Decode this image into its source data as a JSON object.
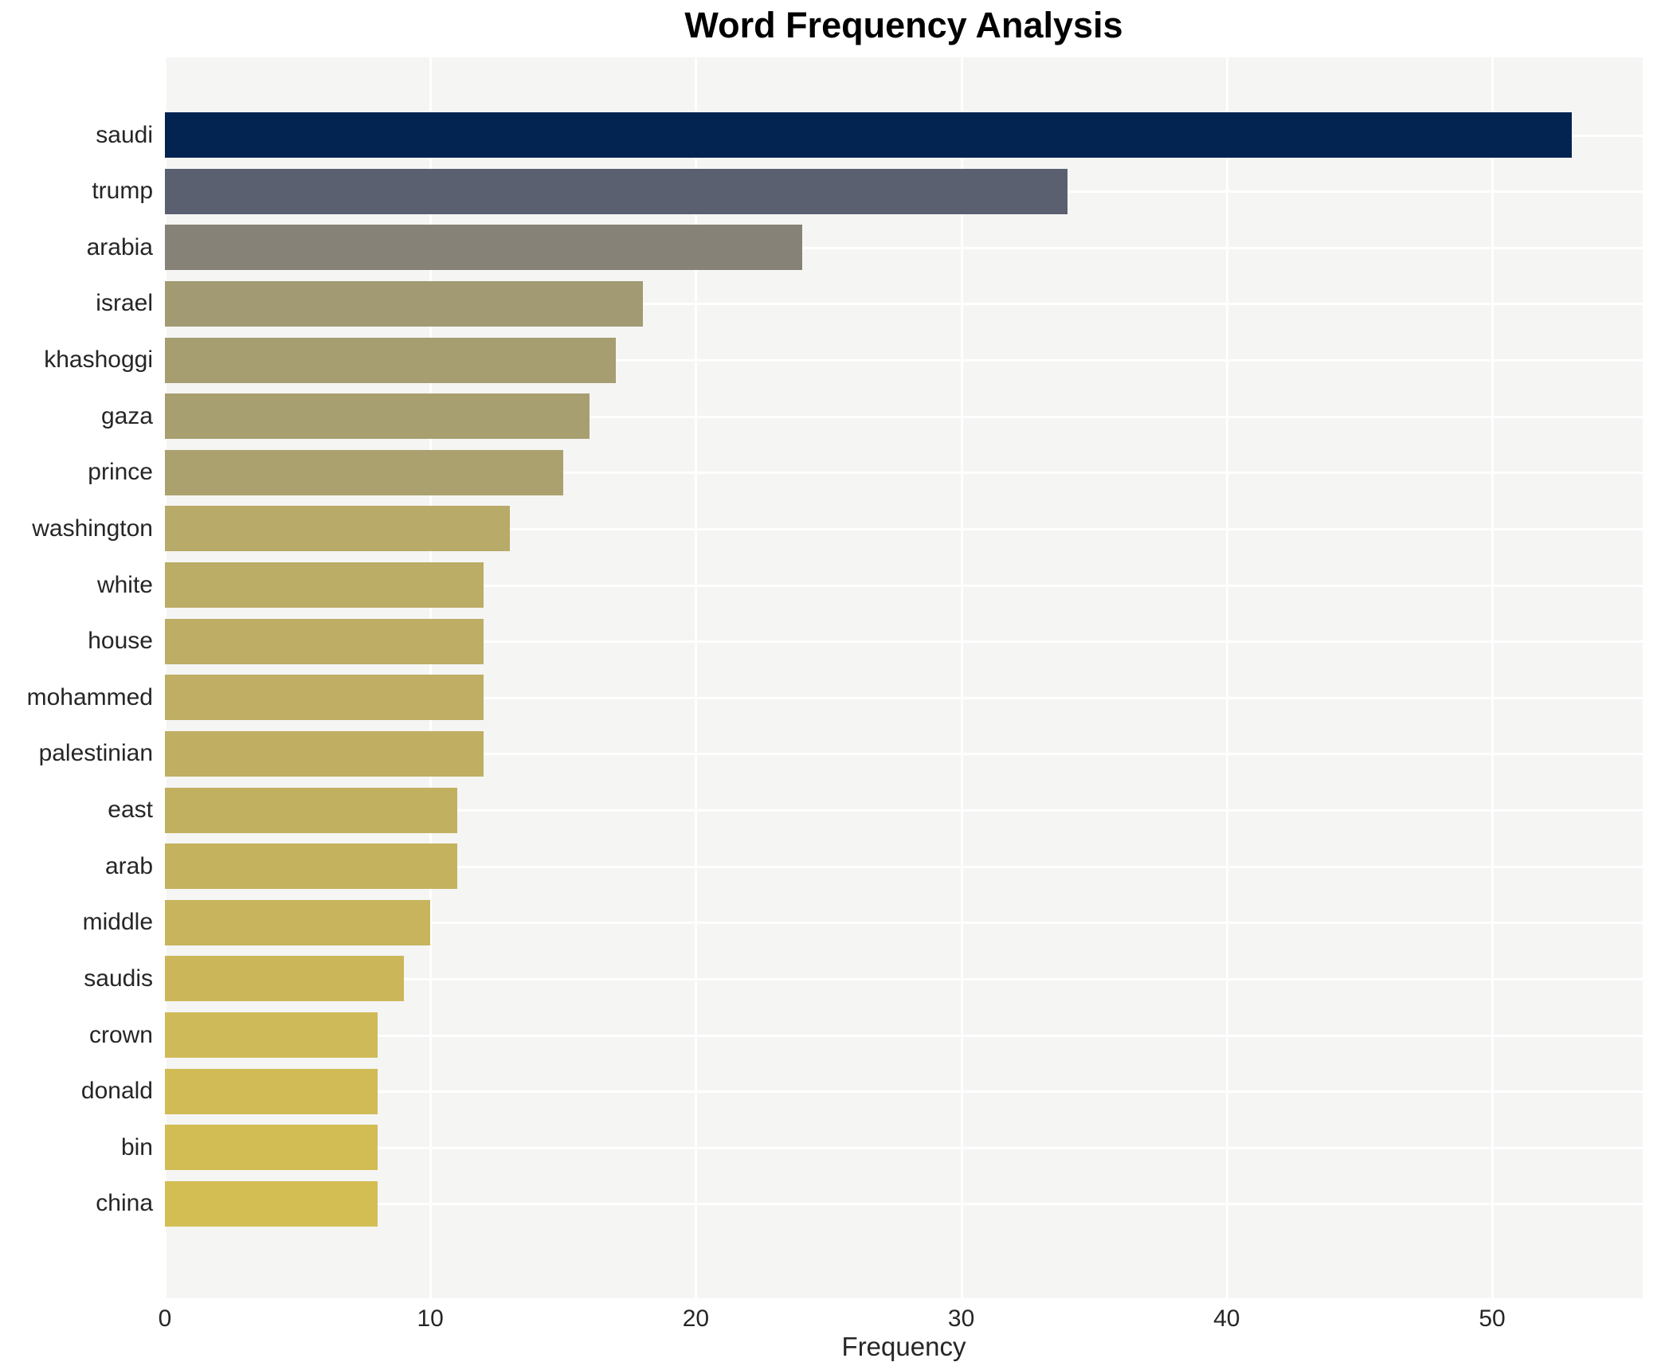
{
  "title": "Word Frequency Analysis",
  "chart_data": {
    "type": "bar",
    "orientation": "horizontal",
    "title": "Word Frequency Analysis",
    "xlabel": "Frequency",
    "ylabel": "",
    "categories": [
      "saudi",
      "trump",
      "arabia",
      "israel",
      "khashoggi",
      "gaza",
      "prince",
      "washington",
      "white",
      "house",
      "mohammed",
      "palestinian",
      "east",
      "arab",
      "middle",
      "saudis",
      "crown",
      "donald",
      "bin",
      "china"
    ],
    "values": [
      53,
      34,
      24,
      18,
      17,
      16,
      15,
      13,
      12,
      12,
      12,
      12,
      11,
      11,
      10,
      9,
      8,
      8,
      8,
      8
    ],
    "bar_colors": [
      "#032350",
      "#5a6070",
      "#878277",
      "#a29a72",
      "#a69d71",
      "#a89f70",
      "#aba16e",
      "#b8aa68",
      "#bbac66",
      "#bdad65",
      "#bfae64",
      "#c0af63",
      "#c2b061",
      "#c4b25f",
      "#c7b45d",
      "#cbb75a",
      "#ceba58",
      "#d0bb56",
      "#d2bd55",
      "#d3be54"
    ],
    "x_ticks": [
      0,
      10,
      20,
      30,
      40,
      50
    ],
    "x_tick_labels": [
      "0",
      "10",
      "20",
      "30",
      "40",
      "50"
    ],
    "xlim": [
      0,
      55.7
    ],
    "grid": "white gridlines on light gray panel, vertical at x ticks and horizontal at each bar center",
    "legend_position": "none",
    "panel_background": "#f5f5f4",
    "outer_background": "#ffffff"
  }
}
